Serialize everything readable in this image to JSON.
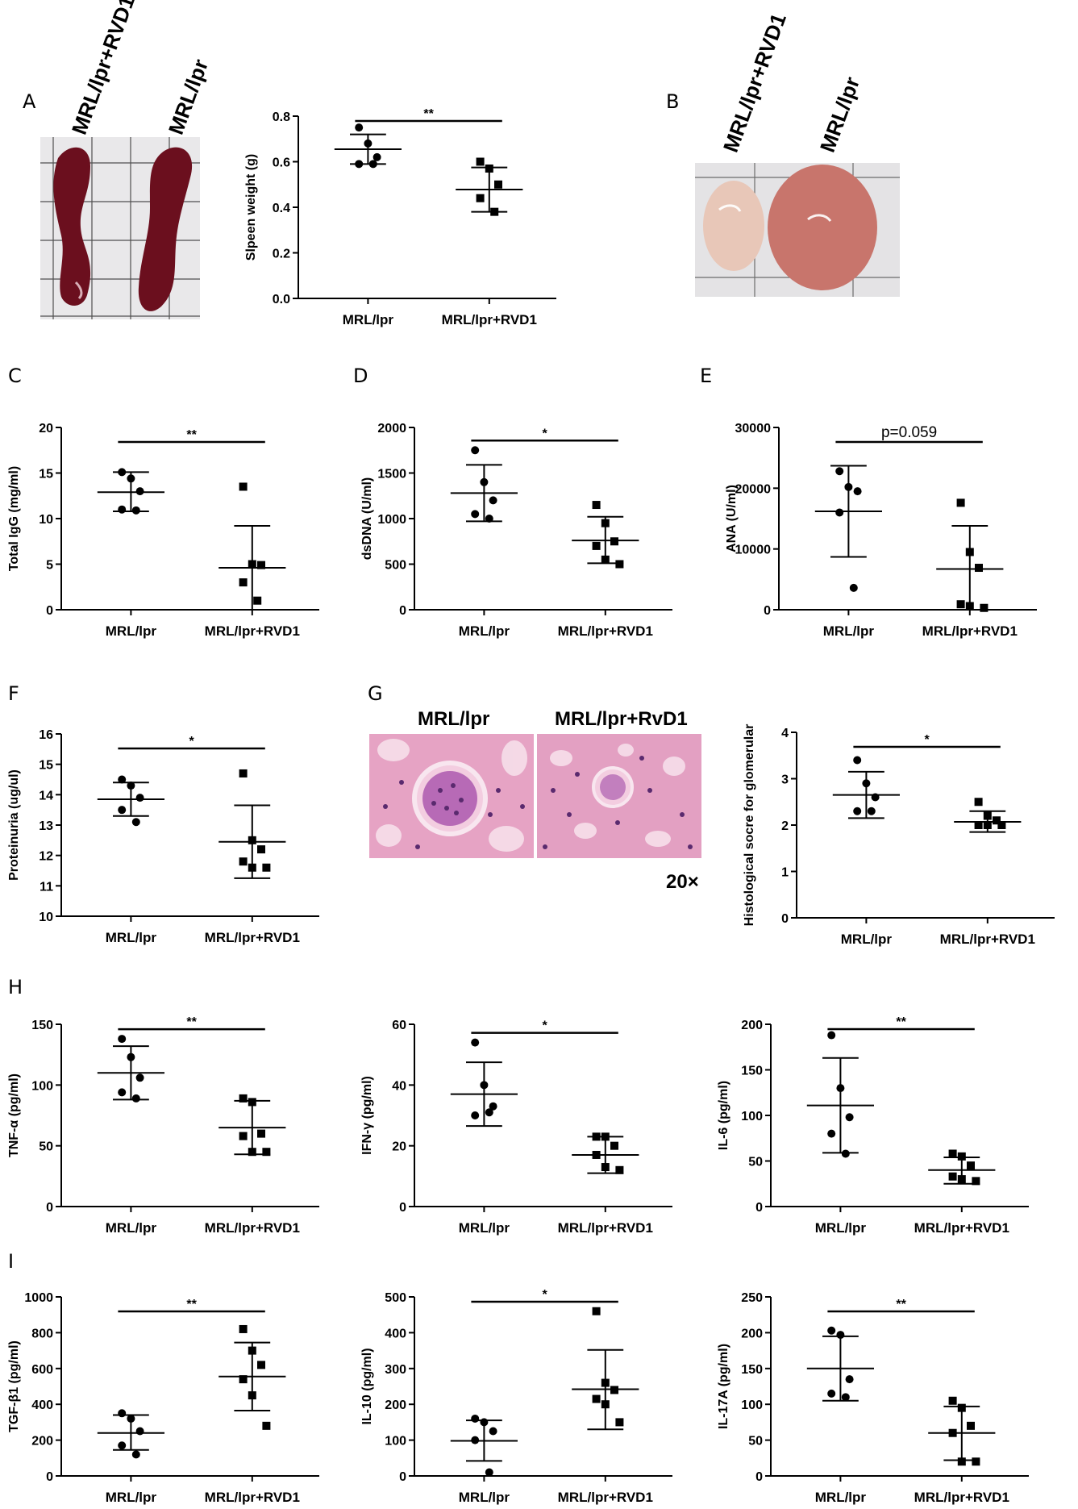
{
  "panel_letters": [
    "A",
    "B",
    "C",
    "D",
    "E",
    "F",
    "G",
    "H",
    "I"
  ],
  "spleen_photo": {
    "labels": [
      "MRL/lpr+RVD1",
      "MRL/lpr"
    ]
  },
  "lymph_photo": {
    "labels": [
      "MRL/lpr+RVD1",
      "MRL/lpr"
    ]
  },
  "histology": {
    "labels": [
      "MRL/lpr",
      "MRL/lpr+RvD1"
    ],
    "magnification": "20×"
  },
  "colors": {
    "spleen": "#6b0f1e",
    "grid_bg": "#e9e8ea",
    "node_pale": "#e8c7b8",
    "node_red": "#c8756c",
    "tissue_pink": "#e6a3c4",
    "tissue_purple": "#8a3c8e"
  },
  "chart_data": [
    {
      "id": "spleen",
      "type": "scatter",
      "ylabel": "Slpeen weight (g)",
      "categories": [
        "MRL/lpr",
        "MRL/lpr+RVD1"
      ],
      "ylim": [
        0,
        0.8
      ],
      "yticks": [
        "0.0",
        "0.2",
        "0.4",
        "0.6",
        "0.8"
      ],
      "groups": [
        {
          "points": [
            0.75,
            0.68,
            0.62,
            0.59,
            0.59
          ],
          "mean": 0.655,
          "sd": [
            0.59,
            0.72
          ]
        },
        {
          "points": [
            0.6,
            0.57,
            0.5,
            0.44,
            0.38
          ],
          "mean": 0.478,
          "sd": [
            0.38,
            0.575
          ]
        }
      ],
      "significance": "**"
    },
    {
      "id": "igg",
      "type": "scatter",
      "ylabel": "Total IgG (mg/ml)",
      "categories": [
        "MRL/lpr",
        "MRL/lpr+RVD1"
      ],
      "ylim": [
        0,
        20
      ],
      "yticks": [
        "0",
        "5",
        "10",
        "15",
        "20"
      ],
      "groups": [
        {
          "points": [
            15.1,
            14.4,
            13.0,
            11.0,
            10.9
          ],
          "mean": 12.9,
          "sd": [
            10.8,
            15.1
          ]
        },
        {
          "points": [
            13.5,
            5.0,
            4.9,
            3.0,
            1.0
          ],
          "mean": 4.6,
          "sd": [
            0.0,
            9.2
          ]
        }
      ],
      "significance": "**"
    },
    {
      "id": "dsdna",
      "type": "scatter",
      "ylabel": "dsDNA (U/ml)",
      "categories": [
        "MRL/lpr",
        "MRL/lpr+RVD1"
      ],
      "ylim": [
        0,
        2000
      ],
      "yticks": [
        "0",
        "500",
        "1000",
        "1500",
        "2000"
      ],
      "groups": [
        {
          "points": [
            1750,
            1400,
            1200,
            1050,
            1000
          ],
          "mean": 1280,
          "sd": [
            970,
            1590
          ]
        },
        {
          "points": [
            1150,
            950,
            750,
            700,
            550,
            500
          ],
          "mean": 760,
          "sd": [
            510,
            1020
          ]
        }
      ],
      "significance": "*"
    },
    {
      "id": "ana",
      "type": "scatter",
      "ylabel": "ANA (U/ml)",
      "categories": [
        "MRL/lpr",
        "MRL/lpr+RVD1"
      ],
      "ylim": [
        0,
        30000
      ],
      "yticks": [
        "0",
        "10000",
        "20000",
        "30000"
      ],
      "groups": [
        {
          "points": [
            22800,
            20200,
            19500,
            16000,
            3600
          ],
          "mean": 16200,
          "sd": [
            8700,
            23700
          ]
        },
        {
          "points": [
            17600,
            9500,
            6900,
            900,
            600,
            300
          ],
          "mean": 6700,
          "sd": [
            0,
            13800
          ]
        }
      ],
      "significance": "p=0.059"
    },
    {
      "id": "proteinuria",
      "type": "scatter",
      "ylabel": "Proteinuria  (ug/ul)",
      "categories": [
        "MRL/lpr",
        "MRL/lpr+RVD1"
      ],
      "ylim": [
        10,
        16
      ],
      "yticks": [
        "10",
        "11",
        "12",
        "13",
        "14",
        "15",
        "16"
      ],
      "groups": [
        {
          "points": [
            14.5,
            14.3,
            13.9,
            13.5,
            13.1
          ],
          "mean": 13.85,
          "sd": [
            13.3,
            14.4
          ]
        },
        {
          "points": [
            14.7,
            12.5,
            12.2,
            11.8,
            11.6,
            11.6
          ],
          "mean": 12.45,
          "sd": [
            11.25,
            13.65
          ]
        }
      ],
      "significance": "*"
    },
    {
      "id": "histo",
      "type": "scatter",
      "ylabel": "Histological socre for glomerular",
      "categories": [
        "MRL/lpr",
        "MRL/lpr+RVD1"
      ],
      "ylim": [
        0,
        4
      ],
      "yticks": [
        "0",
        "1",
        "2",
        "3",
        "4"
      ],
      "groups": [
        {
          "points": [
            3.4,
            2.9,
            2.6,
            2.3,
            2.3
          ],
          "mean": 2.65,
          "sd": [
            2.15,
            3.15
          ]
        },
        {
          "points": [
            2.5,
            2.2,
            2.1,
            2.0,
            2.0,
            2.0
          ],
          "mean": 2.07,
          "sd": [
            1.85,
            2.3
          ]
        }
      ],
      "significance": "*"
    },
    {
      "id": "tnf",
      "type": "scatter",
      "ylabel": "TNF-α (pg/ml)",
      "categories": [
        "MRL/lpr",
        "MRL/lpr+RVD1"
      ],
      "ylim": [
        0,
        150
      ],
      "yticks": [
        "0",
        "50",
        "100",
        "150"
      ],
      "groups": [
        {
          "points": [
            138,
            123,
            106,
            94,
            89
          ],
          "mean": 110,
          "sd": [
            88,
            132
          ]
        },
        {
          "points": [
            89,
            86,
            60,
            58,
            45,
            45
          ],
          "mean": 65,
          "sd": [
            43,
            87
          ]
        }
      ],
      "significance": "**"
    },
    {
      "id": "ifn",
      "type": "scatter",
      "ylabel": "IFN-γ (pg/ml)",
      "categories": [
        "MRL/lpr",
        "MRL/lpr+RVD1"
      ],
      "ylim": [
        0,
        60
      ],
      "yticks": [
        "0",
        "20",
        "40",
        "60"
      ],
      "groups": [
        {
          "points": [
            54,
            40,
            33,
            30,
            31
          ],
          "mean": 37,
          "sd": [
            26.5,
            47.5
          ]
        },
        {
          "points": [
            23,
            23,
            20,
            17,
            13,
            12
          ],
          "mean": 17,
          "sd": [
            11,
            23
          ]
        }
      ],
      "significance": "*"
    },
    {
      "id": "il6",
      "type": "scatter",
      "ylabel": "IL-6 (pg/ml)",
      "categories": [
        "MRL/lpr",
        "MRL/lpr+RVD1"
      ],
      "ylim": [
        0,
        200
      ],
      "yticks": [
        "0",
        "50",
        "100",
        "150",
        "200"
      ],
      "groups": [
        {
          "points": [
            188,
            130,
            98,
            80,
            58
          ],
          "mean": 111,
          "sd": [
            59,
            163
          ]
        },
        {
          "points": [
            58,
            55,
            45,
            33,
            30,
            28
          ],
          "mean": 40,
          "sd": [
            25,
            54
          ]
        }
      ],
      "significance": "**"
    },
    {
      "id": "tgf",
      "type": "scatter",
      "ylabel": "TGF-β1 (pg/ml)",
      "categories": [
        "MRL/lpr",
        "MRL/lpr+RVD1"
      ],
      "ylim": [
        0,
        1000
      ],
      "yticks": [
        "0",
        "200",
        "400",
        "600",
        "800",
        "1000"
      ],
      "groups": [
        {
          "points": [
            350,
            320,
            250,
            170,
            120
          ],
          "mean": 240,
          "sd": [
            145,
            340
          ]
        },
        {
          "points": [
            820,
            700,
            620,
            540,
            450,
            280
          ],
          "mean": 555,
          "sd": [
            365,
            745
          ]
        }
      ],
      "significance": "**"
    },
    {
      "id": "il10",
      "type": "scatter",
      "ylabel": "IL-10 (pg/ml)",
      "categories": [
        "MRL/lpr",
        "MRL/lpr+RVD1"
      ],
      "ylim": [
        0,
        500
      ],
      "yticks": [
        "0",
        "100",
        "200",
        "300",
        "400",
        "500"
      ],
      "groups": [
        {
          "points": [
            160,
            150,
            125,
            100,
            10
          ],
          "mean": 98,
          "sd": [
            42,
            155
          ]
        },
        {
          "points": [
            460,
            260,
            240,
            215,
            200,
            150
          ],
          "mean": 242,
          "sd": [
            130,
            352
          ]
        }
      ],
      "significance": "*"
    },
    {
      "id": "il17",
      "type": "scatter",
      "ylabel": "IL-17A (pg/ml)",
      "categories": [
        "MRL/lpr",
        "MRL/lpr+RVD1"
      ],
      "ylim": [
        0,
        250
      ],
      "yticks": [
        "0",
        "50",
        "100",
        "150",
        "200",
        "250"
      ],
      "groups": [
        {
          "points": [
            203,
            197,
            135,
            115,
            110
          ],
          "mean": 150,
          "sd": [
            105,
            195
          ]
        },
        {
          "points": [
            105,
            95,
            70,
            60,
            20,
            20
          ],
          "mean": 60,
          "sd": [
            22,
            97
          ]
        }
      ],
      "significance": "**"
    }
  ]
}
